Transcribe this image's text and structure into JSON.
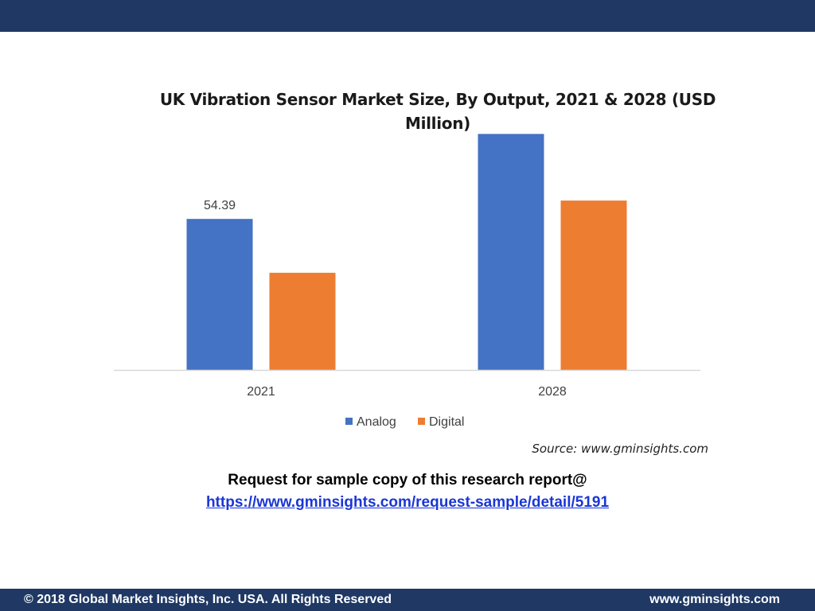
{
  "header": {
    "band_color": "#1f3864"
  },
  "chart_data": {
    "type": "bar",
    "title": "UK Vibration  Sensor Market Size, By Output, 2021 & 2028 (USD Million)",
    "categories": [
      "2021",
      "2028"
    ],
    "series": [
      {
        "name": "Analog",
        "color": "#4472c4",
        "values": [
          54.39,
          85.0
        ]
      },
      {
        "name": "Digital",
        "color": "#ed7d31",
        "values": [
          35.0,
          61.0
        ]
      }
    ],
    "data_labels": [
      {
        "series": "Analog",
        "category": "2021",
        "text": "54.39"
      }
    ],
    "ylim": [
      0,
      100
    ],
    "grid": false,
    "legend": "bottom"
  },
  "source": "Source: www.gminsights.com",
  "cta": {
    "line1": "Request for sample copy of this research report@",
    "link": "https://www.gminsights.com/request-sample/detail/5191"
  },
  "footer": {
    "copyright": "© 2018 Global Market Insights, Inc. USA. All Rights Reserved",
    "website": "www.gminsights.com"
  }
}
